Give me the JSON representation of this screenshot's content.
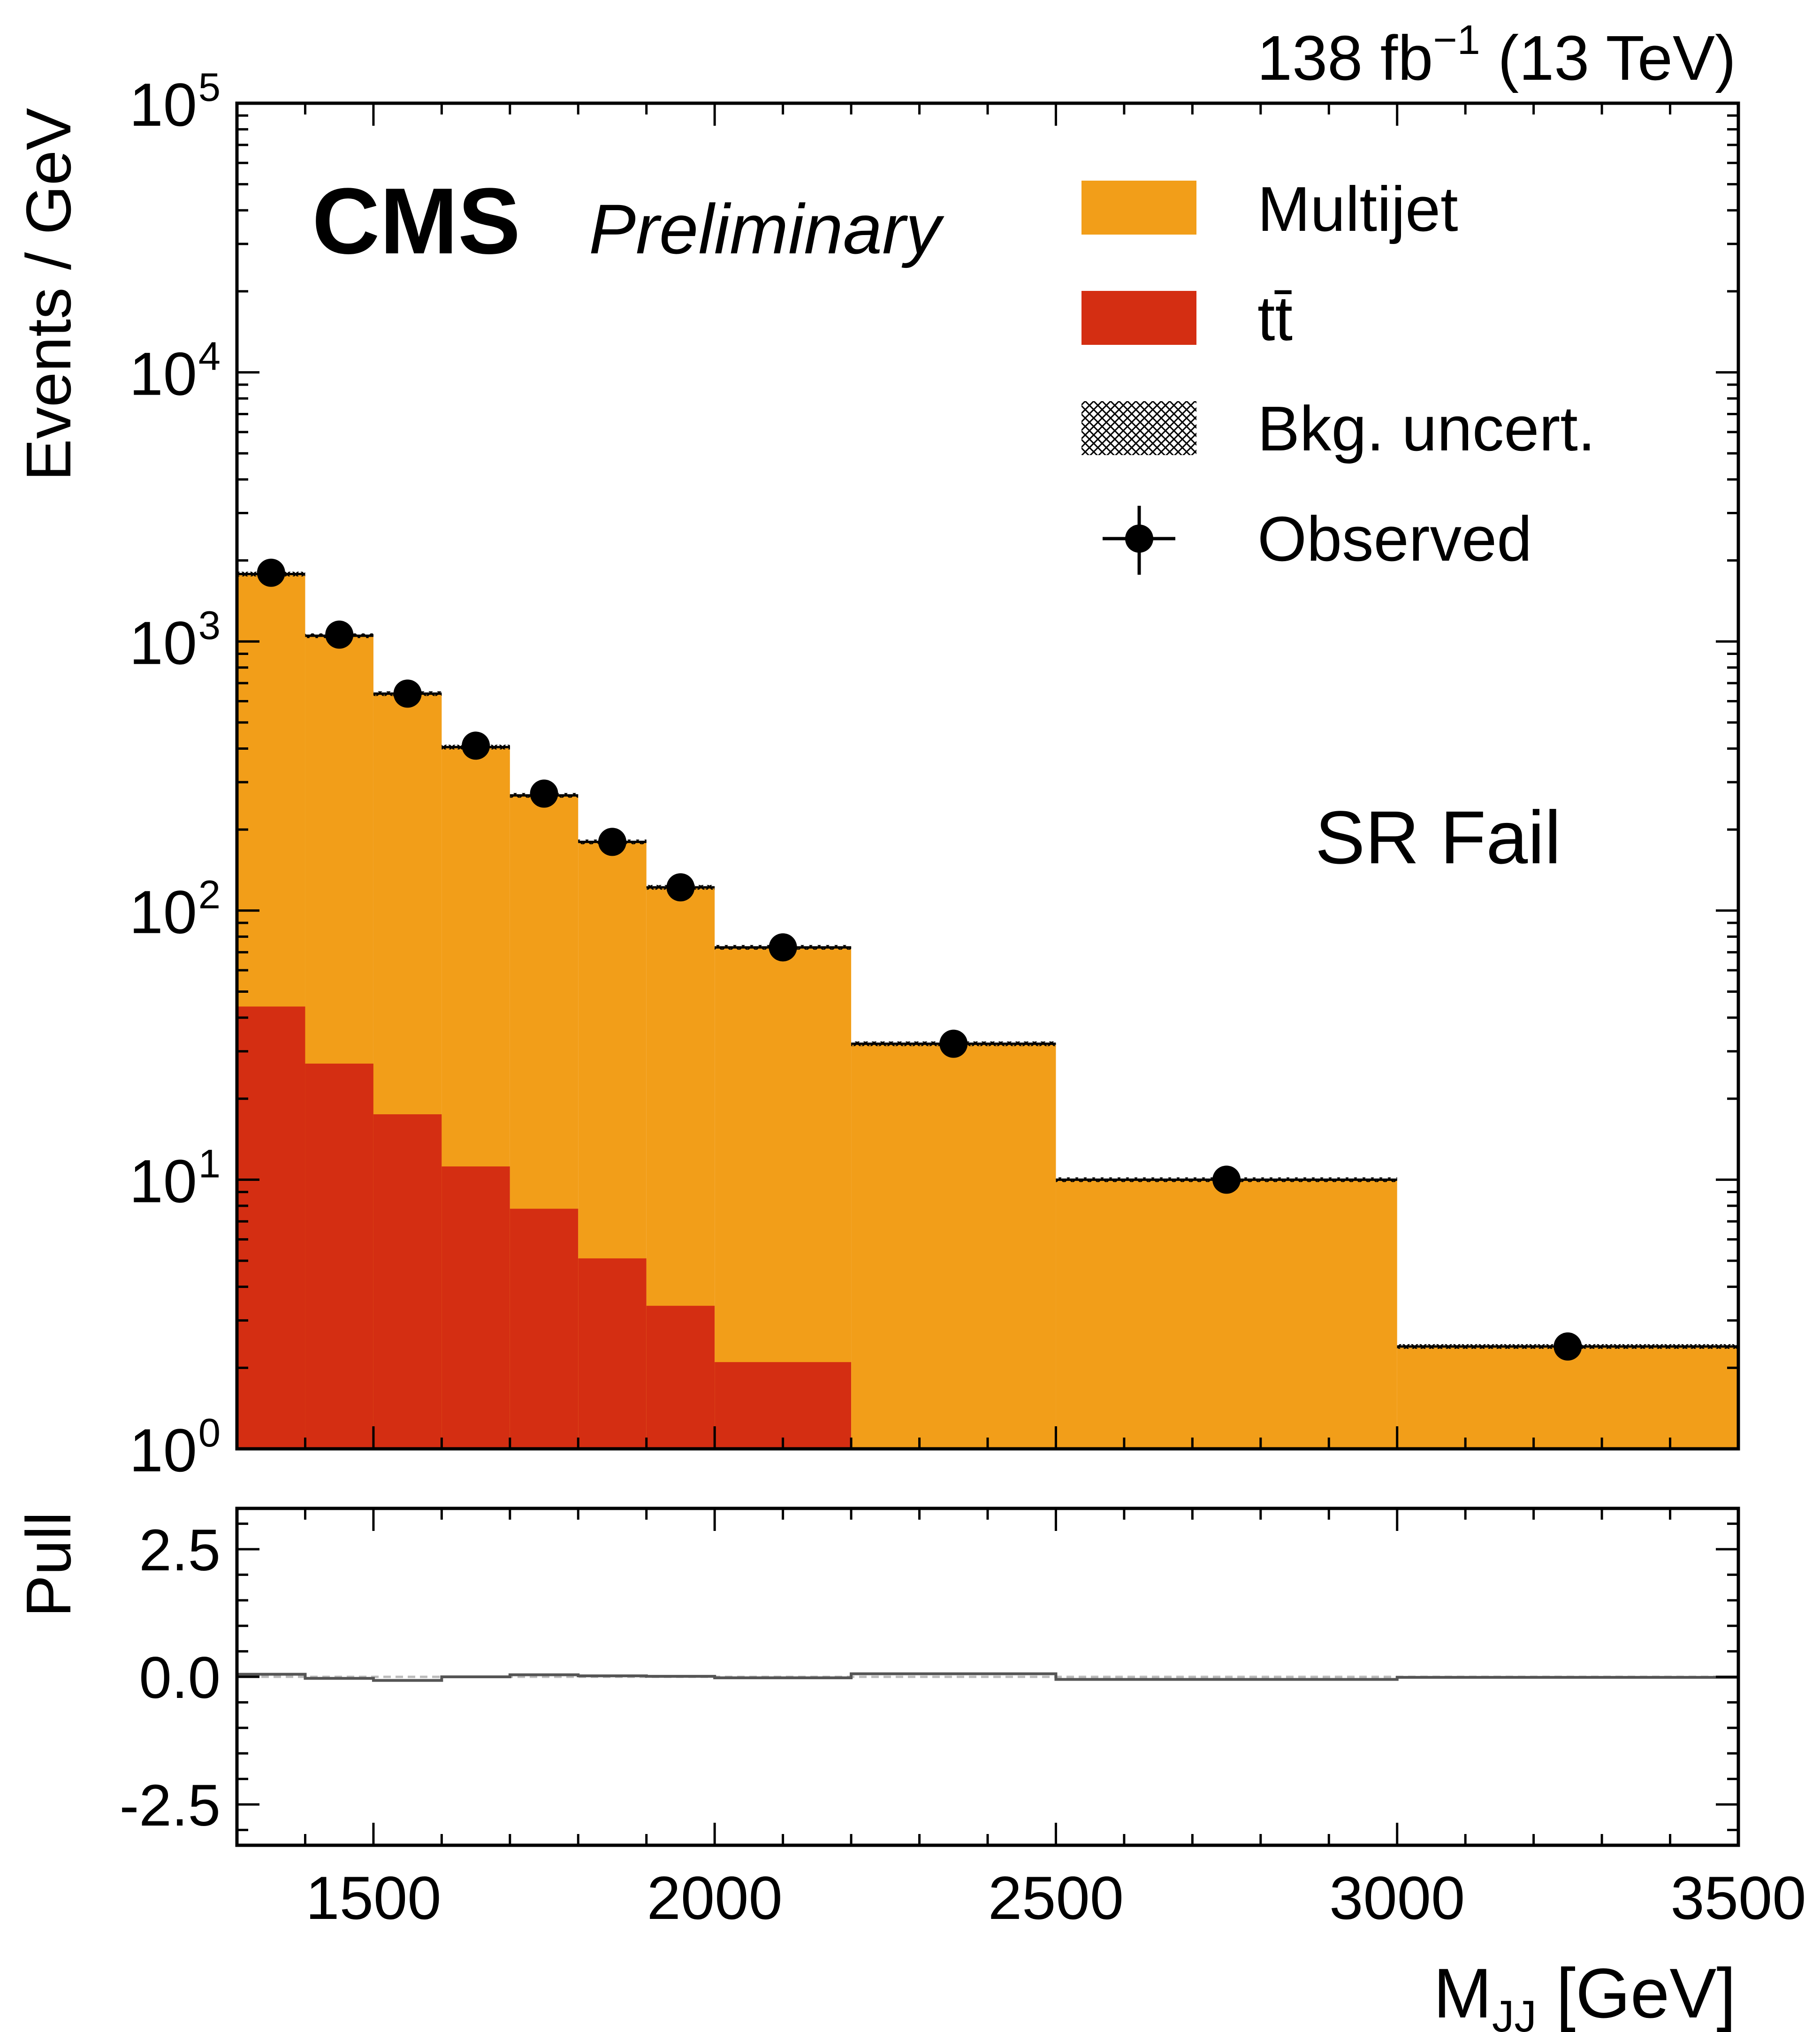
{
  "chart_data": [
    {
      "type": "bar",
      "panel": "main",
      "lumi_label": "138 fb",
      "lumi_superscript": "−1",
      "energy_label": "(13 TeV)",
      "experiment": "CMS",
      "status": "Preliminary",
      "region_label": "SR Fail",
      "ylabel": "Events / GeV",
      "xlabel_main": "M",
      "xlabel_sub": "JJ",
      "xlabel_unit": "[GeV]",
      "y_scale": "log",
      "ylim": [
        1,
        100000
      ],
      "xlim": [
        1300,
        3500
      ],
      "y_ticks": [
        {
          "base": "10",
          "exp": "0",
          "value": 1
        },
        {
          "base": "10",
          "exp": "1",
          "value": 10
        },
        {
          "base": "10",
          "exp": "2",
          "value": 100
        },
        {
          "base": "10",
          "exp": "3",
          "value": 1000
        },
        {
          "base": "10",
          "exp": "4",
          "value": 10000
        },
        {
          "base": "10",
          "exp": "5",
          "value": 100000
        }
      ],
      "bin_edges": [
        1300,
        1400,
        1500,
        1600,
        1700,
        1800,
        1900,
        2000,
        2200,
        2500,
        3000,
        3500
      ],
      "series": [
        {
          "name": "Multijet",
          "color": "#f29e19",
          "stacked_total": [
            1780,
            1050,
            640,
            405,
            268,
            180,
            122,
            73,
            32,
            10,
            2.4
          ]
        },
        {
          "name": "tt̄",
          "color": "#d42e12",
          "values": [
            44,
            27,
            17.5,
            11.2,
            7.8,
            5.1,
            3.4,
            2.1,
            0,
            0,
            0
          ]
        }
      ],
      "observed": {
        "name": "Observed",
        "values": [
          1800,
          1060,
          640,
          410,
          272,
          180,
          122,
          73,
          32,
          10,
          2.4
        ]
      },
      "legend": {
        "placement": "top-right",
        "items": [
          {
            "label": "Multijet",
            "kind": "fill",
            "color": "#f29e19"
          },
          {
            "label": "tt̄",
            "kind": "fill",
            "color": "#d42e12"
          },
          {
            "label": "Bkg. uncert.",
            "kind": "hatch",
            "color": "#000000"
          },
          {
            "label": "Observed",
            "kind": "marker",
            "color": "#000000"
          }
        ]
      }
    },
    {
      "type": "line",
      "panel": "pull",
      "ylabel": "Pull",
      "ylim": [
        -3.3,
        3.3
      ],
      "y_ticks": [
        "2.5",
        "0.0",
        "-2.5"
      ],
      "y_tick_values": [
        2.5,
        0,
        -2.5
      ],
      "x_ticks": [
        "1500",
        "2000",
        "2500",
        "3000",
        "3500"
      ],
      "x_tick_values": [
        1500,
        2000,
        2500,
        3000,
        3500
      ],
      "bin_edges": [
        1300,
        1400,
        1500,
        1600,
        1700,
        1800,
        1900,
        2000,
        2200,
        2500,
        3000,
        3500
      ],
      "values": [
        0.05,
        -0.03,
        -0.07,
        0.0,
        0.04,
        0.02,
        0.01,
        -0.02,
        0.06,
        -0.05,
        -0.01
      ]
    }
  ]
}
